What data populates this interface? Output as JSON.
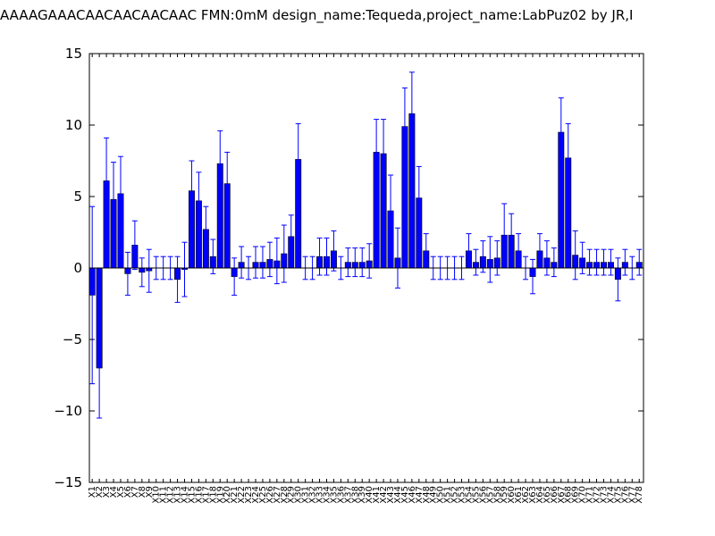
{
  "chart_data": {
    "type": "bar",
    "title": "AAAAGAAACAACAACAACAAC  FMN:0mM  design_name:Tequeda,project_name:LabPuz02 by JR,I",
    "xlabel": "",
    "ylabel": "",
    "ylim": [
      -15,
      15
    ],
    "yticks": [
      "−15",
      "−10",
      "−5",
      "0",
      "5",
      "10",
      "15"
    ],
    "ytick_values": [
      -15,
      -10,
      -5,
      0,
      5,
      10,
      15
    ],
    "grid": false,
    "categories": [
      "X1",
      "X2",
      "X3",
      "X4",
      "X5",
      "X6",
      "X7",
      "X8",
      "X9",
      "X10",
      "X11",
      "X12",
      "X13",
      "X14",
      "X15",
      "X16",
      "X17",
      "X18",
      "X19",
      "X20",
      "X21",
      "X22",
      "X23",
      "X24",
      "X25",
      "X26",
      "X27",
      "X28",
      "X29",
      "X30",
      "X31",
      "X32",
      "X33",
      "X34",
      "X35",
      "X36",
      "X37",
      "X38",
      "X39",
      "X40",
      "X41",
      "X42",
      "X43",
      "X44",
      "X45",
      "X46",
      "X47",
      "X48",
      "X49",
      "X50",
      "X51",
      "X52",
      "X53",
      "X54",
      "X55",
      "X56",
      "X57",
      "X58",
      "X59",
      "X60",
      "X61",
      "X62",
      "X63",
      "X64",
      "X65",
      "X66",
      "X67",
      "X68",
      "X69",
      "X70",
      "X71",
      "X72",
      "X73",
      "X74",
      "X75",
      "X76",
      "X77",
      "X78"
    ],
    "tick_label_indices": [
      0,
      1,
      2,
      3,
      4,
      5,
      6,
      7,
      8,
      9,
      10,
      11,
      12,
      13,
      14,
      15,
      16,
      17,
      18,
      19,
      20,
      21,
      22,
      23,
      24,
      25,
      26,
      27,
      28,
      29,
      30,
      31,
      32,
      33,
      34,
      35,
      36,
      37,
      38,
      39,
      40,
      41,
      42,
      43,
      44,
      45,
      46,
      47,
      48,
      49,
      50,
      51,
      52,
      53,
      54,
      55,
      56,
      57,
      58,
      59,
      60,
      61,
      62,
      63,
      64,
      65,
      66,
      67,
      68,
      69,
      70,
      71,
      72,
      73,
      74,
      75,
      76,
      77
    ],
    "tick_label_texts": [
      "X1",
      "X2",
      "X3",
      "X4",
      "X5",
      "X6",
      "X7",
      "X8",
      "X9",
      "X10",
      "X11",
      "X12",
      "X13",
      "X14",
      "X15",
      "X16",
      "X17",
      "X18",
      "X19",
      "X20",
      "X21",
      "X22",
      "X23",
      "X24",
      "X25",
      "X26",
      "X27",
      "X28",
      "X29",
      "X30",
      "X31",
      "X32",
      "X33",
      "X34",
      "X35",
      "X36",
      "X37",
      "X38",
      "X39",
      "X40",
      "X41",
      "X42",
      "X43",
      "X44",
      "X45",
      "X46",
      "X47",
      "X48",
      "X49",
      "X50",
      "X51",
      "X52",
      "X53",
      "X54",
      "X55",
      "X56",
      "X57",
      "X58",
      "X59",
      "X60",
      "X61",
      "X62",
      "X63",
      "X64",
      "X65",
      "X66",
      "X67",
      "X68",
      "X69",
      "X70",
      "X71",
      "X72",
      "X73",
      "X74",
      "X75",
      "X76",
      "X77",
      "X78"
    ],
    "series": [
      {
        "values": [
          -1.9,
          -7.0,
          6.1,
          4.8,
          5.2,
          -0.4,
          1.6,
          -0.3,
          -0.2,
          0.0,
          0.0,
          0.0,
          -0.8,
          -0.1,
          5.4,
          4.7,
          2.7,
          0.8,
          7.3,
          5.9,
          -0.6,
          0.4,
          0.0,
          0.4,
          0.4,
          0.6,
          0.5,
          1.0,
          2.2,
          7.6,
          0.0,
          0.0,
          0.8,
          0.8,
          1.2,
          0.0,
          0.4,
          0.4,
          0.4,
          0.5,
          8.1,
          8.0,
          4.0,
          0.7,
          9.9,
          10.8,
          4.9,
          1.2,
          0.0,
          0.0,
          0.0,
          0.0,
          0.0,
          1.2,
          0.4,
          0.8,
          0.6,
          0.7,
          2.3,
          2.3,
          1.2,
          0.0,
          -0.6,
          1.2,
          0.7,
          0.4,
          9.5,
          7.7,
          0.9,
          0.7,
          0.4,
          0.4,
          0.4,
          0.4,
          -0.8,
          0.4,
          0.0,
          0.4
        ],
        "errors": [
          6.2,
          3.5,
          3.0,
          2.6,
          2.6,
          1.5,
          1.7,
          1.0,
          1.5,
          0.8,
          0.8,
          0.8,
          1.6,
          1.9,
          2.1,
          2.0,
          1.6,
          1.2,
          2.3,
          2.2,
          1.3,
          1.1,
          0.8,
          1.1,
          1.1,
          1.2,
          1.6,
          2.0,
          1.5,
          2.5,
          0.8,
          0.8,
          1.3,
          1.3,
          1.4,
          0.8,
          1.0,
          1.0,
          1.0,
          1.2,
          2.3,
          2.4,
          2.5,
          2.1,
          2.7,
          2.9,
          2.2,
          1.2,
          0.8,
          0.8,
          0.8,
          0.8,
          0.8,
          1.2,
          0.9,
          1.1,
          1.6,
          1.2,
          2.2,
          1.5,
          1.2,
          0.8,
          1.2,
          1.2,
          1.2,
          1.0,
          2.4,
          2.4,
          1.7,
          1.1,
          0.9,
          0.9,
          0.9,
          0.9,
          1.5,
          0.9,
          0.8,
          0.9
        ]
      }
    ],
    "colors": {
      "bar": "#0000ff",
      "bar_edge": "#000000",
      "error": "#0000ff",
      "axis": "#000000"
    }
  }
}
